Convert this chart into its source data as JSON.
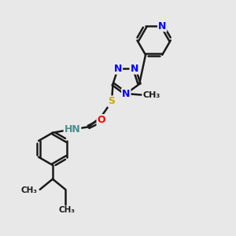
{
  "bg_color": "#e8e8e8",
  "bond_color": "#1a1a1a",
  "bond_width": 1.8,
  "atom_colors": {
    "N": "#0000ff",
    "O": "#ff0000",
    "S": "#ccaa00",
    "H": "#4a8f8f",
    "C": "#1a1a1a"
  },
  "font_size": 9,
  "fig_bg": "#e8e8e8",
  "xlim": [
    0,
    10
  ],
  "ylim": [
    0,
    10
  ]
}
